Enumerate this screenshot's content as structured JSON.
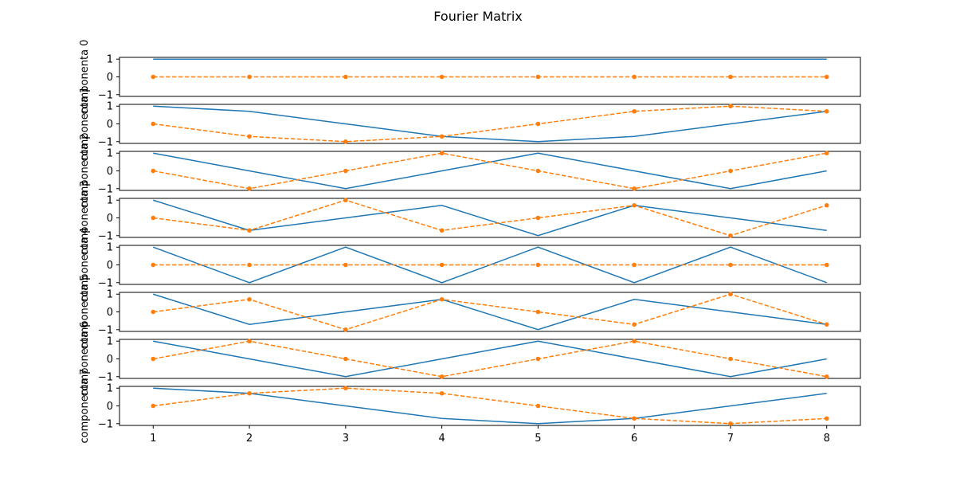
{
  "chart_data": {
    "type": "line",
    "title": "Fourier Matrix",
    "xlabel": "",
    "x": [
      1,
      2,
      3,
      4,
      5,
      6,
      7,
      8
    ],
    "x_tick_labels": [
      "1",
      "2",
      "3",
      "4",
      "5",
      "6",
      "7",
      "8"
    ],
    "ylim": [
      -1.1,
      1.1
    ],
    "y_tick_labels": [
      "1",
      "0",
      "−1"
    ],
    "series_styles": [
      {
        "role": "solid",
        "color": "#1f77b4",
        "line": "solid",
        "marker": "none"
      },
      {
        "role": "dashed",
        "color": "#ff7f0e",
        "line": "dashed",
        "marker": "circle"
      }
    ],
    "subplots": [
      {
        "ylabel": "componenta 0",
        "series": [
          {
            "values": [
              1,
              1,
              1,
              1,
              1,
              1,
              1,
              1
            ]
          },
          {
            "values": [
              0,
              0,
              0,
              0,
              0,
              0,
              0,
              0
            ]
          }
        ]
      },
      {
        "ylabel": "componenta 1",
        "series": [
          {
            "values": [
              1,
              0.707,
              0,
              -0.707,
              -1,
              -0.707,
              0,
              0.707
            ]
          },
          {
            "values": [
              0,
              -0.707,
              -1,
              -0.707,
              0,
              0.707,
              1,
              0.707
            ]
          }
        ]
      },
      {
        "ylabel": "componenta 2",
        "series": [
          {
            "values": [
              1,
              0,
              -1,
              0,
              1,
              0,
              -1,
              0
            ]
          },
          {
            "values": [
              0,
              -1,
              0,
              1,
              0,
              -1,
              0,
              1
            ]
          }
        ]
      },
      {
        "ylabel": "componenta 3",
        "series": [
          {
            "values": [
              1,
              -0.707,
              0,
              0.707,
              -1,
              0.707,
              0,
              -0.707
            ]
          },
          {
            "values": [
              0,
              -0.707,
              1,
              -0.707,
              0,
              0.707,
              -1,
              0.707
            ]
          }
        ]
      },
      {
        "ylabel": "componenta 4",
        "series": [
          {
            "values": [
              1,
              -1,
              1,
              -1,
              1,
              -1,
              1,
              -1
            ]
          },
          {
            "values": [
              0,
              0,
              0,
              0,
              0,
              0,
              0,
              0
            ]
          }
        ]
      },
      {
        "ylabel": "componenta 5",
        "series": [
          {
            "values": [
              1,
              -0.707,
              0,
              0.707,
              -1,
              0.707,
              0,
              -0.707
            ]
          },
          {
            "values": [
              0,
              0.707,
              -1,
              0.707,
              0,
              -0.707,
              1,
              -0.707
            ]
          }
        ]
      },
      {
        "ylabel": "componenta 6",
        "series": [
          {
            "values": [
              1,
              0,
              -1,
              0,
              1,
              0,
              -1,
              0
            ]
          },
          {
            "values": [
              0,
              1,
              0,
              -1,
              0,
              1,
              0,
              -1
            ]
          }
        ]
      },
      {
        "ylabel": "componenta 7",
        "series": [
          {
            "values": [
              1,
              0.707,
              0,
              -0.707,
              -1,
              -0.707,
              0,
              0.707
            ]
          },
          {
            "values": [
              0,
              0.707,
              1,
              0.707,
              0,
              -0.707,
              -1,
              -0.707
            ]
          }
        ]
      }
    ]
  }
}
